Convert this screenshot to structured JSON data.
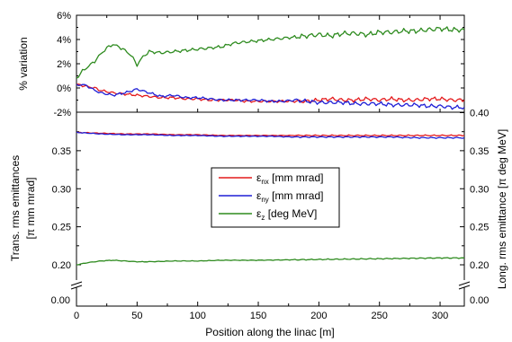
{
  "chart_data": [
    {
      "type": "line",
      "panel": "top",
      "ylabel": "% variation",
      "ylim": [
        -2,
        6
      ],
      "y_ticks": [
        "-2%",
        "0%",
        "2%",
        "4%",
        "6%"
      ],
      "xlim": [
        0,
        320
      ],
      "series": [
        {
          "key": "enx",
          "color": "#e41a1c",
          "x": [
            0,
            5,
            10,
            15,
            20,
            30,
            40,
            50,
            60,
            70,
            80,
            90,
            100,
            110,
            120,
            130,
            140,
            150,
            160,
            170,
            180,
            190,
            200,
            210,
            220,
            230,
            240,
            250,
            260,
            270,
            280,
            290,
            300,
            310,
            320
          ],
          "y": [
            0.3,
            0.2,
            0.1,
            0.0,
            -0.2,
            -0.4,
            -0.5,
            -0.6,
            -0.7,
            -0.8,
            -0.8,
            -0.9,
            -0.9,
            -1.0,
            -1.0,
            -1.0,
            -1.1,
            -1.1,
            -1.1,
            -1.1,
            -1.1,
            -1.1,
            -1.0,
            -0.9,
            -1.0,
            -1.0,
            -0.9,
            -1.0,
            -0.9,
            -1.0,
            -1.0,
            -0.9,
            -0.9,
            -1.0,
            -1.0
          ]
        },
        {
          "key": "eny",
          "color": "#1f1fd6",
          "x": [
            0,
            5,
            10,
            15,
            20,
            30,
            40,
            50,
            60,
            70,
            80,
            90,
            100,
            110,
            120,
            130,
            140,
            150,
            160,
            170,
            180,
            190,
            200,
            210,
            220,
            230,
            240,
            250,
            260,
            270,
            280,
            290,
            300,
            310,
            320
          ],
          "y": [
            0.2,
            0.3,
            0.1,
            -0.2,
            -0.4,
            -0.6,
            -0.4,
            -0.1,
            -0.4,
            -0.7,
            -0.6,
            -0.8,
            -0.8,
            -0.9,
            -1.0,
            -1.0,
            -1.0,
            -1.0,
            -1.1,
            -1.1,
            -1.0,
            -1.1,
            -1.2,
            -1.2,
            -1.2,
            -1.3,
            -1.3,
            -1.3,
            -1.4,
            -1.4,
            -1.4,
            -1.5,
            -1.5,
            -1.6,
            -1.6
          ]
        },
        {
          "key": "ez",
          "color": "#2e8b1f",
          "x": [
            0,
            5,
            10,
            15,
            20,
            25,
            30,
            35,
            40,
            45,
            50,
            55,
            60,
            70,
            80,
            90,
            100,
            110,
            120,
            130,
            140,
            150,
            160,
            170,
            180,
            190,
            200,
            210,
            220,
            230,
            240,
            250,
            260,
            270,
            280,
            290,
            300,
            310,
            320
          ],
          "y": [
            0.8,
            1.4,
            1.8,
            2.2,
            2.8,
            3.3,
            3.6,
            3.4,
            3.1,
            2.7,
            1.9,
            2.6,
            3.0,
            2.9,
            3.0,
            3.1,
            3.2,
            3.3,
            3.4,
            3.7,
            3.8,
            3.9,
            4.0,
            4.1,
            4.2,
            4.3,
            4.4,
            4.3,
            4.5,
            4.5,
            4.4,
            4.6,
            4.6,
            4.7,
            4.7,
            4.8,
            4.9,
            4.8,
            4.8
          ]
        }
      ]
    },
    {
      "type": "line",
      "panel": "bottom",
      "xlabel": "Position along the linac [m]",
      "ylabel_left": [
        "Trans. rms emittances",
        "[π mm mrad]"
      ],
      "ylabel_right": "Long. rms emittance [π deg MeV]",
      "xlim": [
        0,
        320
      ],
      "x_ticks": [
        0,
        50,
        100,
        150,
        200,
        250,
        300
      ],
      "ylim": [
        0.19,
        0.385
      ],
      "y_ticks_left": [
        "0.20",
        "0.25",
        "0.30",
        "0.35"
      ],
      "y_ticks_right": [
        "0.20",
        "0.25",
        "0.30",
        "0.35",
        "0.40"
      ],
      "axis_break_label": "0.00",
      "legend_position": "center",
      "legend": [
        {
          "key": "enx",
          "symbol": "ε",
          "sub": "nx",
          "text": " [mm mrad]",
          "color": "#e41a1c"
        },
        {
          "key": "eny",
          "symbol": "ε",
          "sub": "ny",
          "text": " [mm mrad]",
          "color": "#1f1fd6"
        },
        {
          "key": "ez",
          "symbol": "ε",
          "sub": "z",
          "text": " [deg MeV]",
          "color": "#2e8b1f"
        }
      ],
      "series": [
        {
          "key": "enx",
          "color": "#e41a1c",
          "x": [
            0,
            20,
            40,
            60,
            80,
            100,
            120,
            140,
            160,
            180,
            200,
            220,
            240,
            260,
            280,
            300,
            320
          ],
          "y": [
            0.374,
            0.373,
            0.372,
            0.372,
            0.371,
            0.371,
            0.37,
            0.37,
            0.37,
            0.37,
            0.37,
            0.37,
            0.37,
            0.37,
            0.37,
            0.37,
            0.37
          ]
        },
        {
          "key": "eny",
          "color": "#1f1fd6",
          "x": [
            0,
            20,
            40,
            60,
            80,
            100,
            120,
            140,
            160,
            180,
            200,
            220,
            240,
            260,
            280,
            300,
            320
          ],
          "y": [
            0.374,
            0.372,
            0.371,
            0.371,
            0.37,
            0.37,
            0.369,
            0.369,
            0.369,
            0.368,
            0.368,
            0.368,
            0.368,
            0.368,
            0.367,
            0.367,
            0.367
          ]
        },
        {
          "key": "ez",
          "color": "#2e8b1f",
          "x": [
            0,
            10,
            20,
            30,
            40,
            50,
            60,
            80,
            100,
            120,
            150,
            200,
            250,
            300,
            320
          ],
          "y": [
            0.2,
            0.203,
            0.205,
            0.206,
            0.205,
            0.204,
            0.204,
            0.205,
            0.205,
            0.206,
            0.206,
            0.207,
            0.208,
            0.209,
            0.209
          ]
        }
      ]
    }
  ]
}
